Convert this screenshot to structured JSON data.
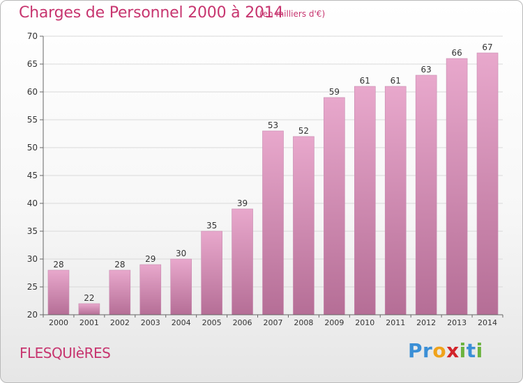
{
  "title": "Charges de Personnel 2000 à 2014",
  "subtitle": "(en milliers d'€)",
  "commune": "FLESQUIèRES",
  "logo": {
    "letters": [
      {
        "ch": "P",
        "color": "#3b8fd6"
      },
      {
        "ch": "r",
        "color": "#3b8fd6"
      },
      {
        "ch": "o",
        "color": "#f0a31b"
      },
      {
        "ch": "x",
        "color": "#d2242a"
      },
      {
        "ch": "i",
        "color": "#6cb33f"
      },
      {
        "ch": "t",
        "color": "#3b8fd6"
      },
      {
        "ch": "i",
        "color": "#6cb33f"
      }
    ]
  },
  "colors": {
    "accent": "#c7356f",
    "bar_top": "#e8a8cc",
    "bar_bottom": "#b56e96",
    "grid": "#d9d9d9",
    "axis": "#666666"
  },
  "chart_data": {
    "type": "bar",
    "categories": [
      "2000",
      "2001",
      "2002",
      "2003",
      "2004",
      "2005",
      "2006",
      "2007",
      "2008",
      "2009",
      "2010",
      "2011",
      "2012",
      "2013",
      "2014"
    ],
    "values": [
      28,
      22,
      28,
      29,
      30,
      35,
      39,
      53,
      52,
      59,
      61,
      61,
      63,
      66,
      67
    ],
    "ylim": [
      20,
      70
    ],
    "yticks": [
      20,
      25,
      30,
      35,
      40,
      45,
      50,
      55,
      60,
      65,
      70
    ],
    "grid": true,
    "data_labels": true
  }
}
